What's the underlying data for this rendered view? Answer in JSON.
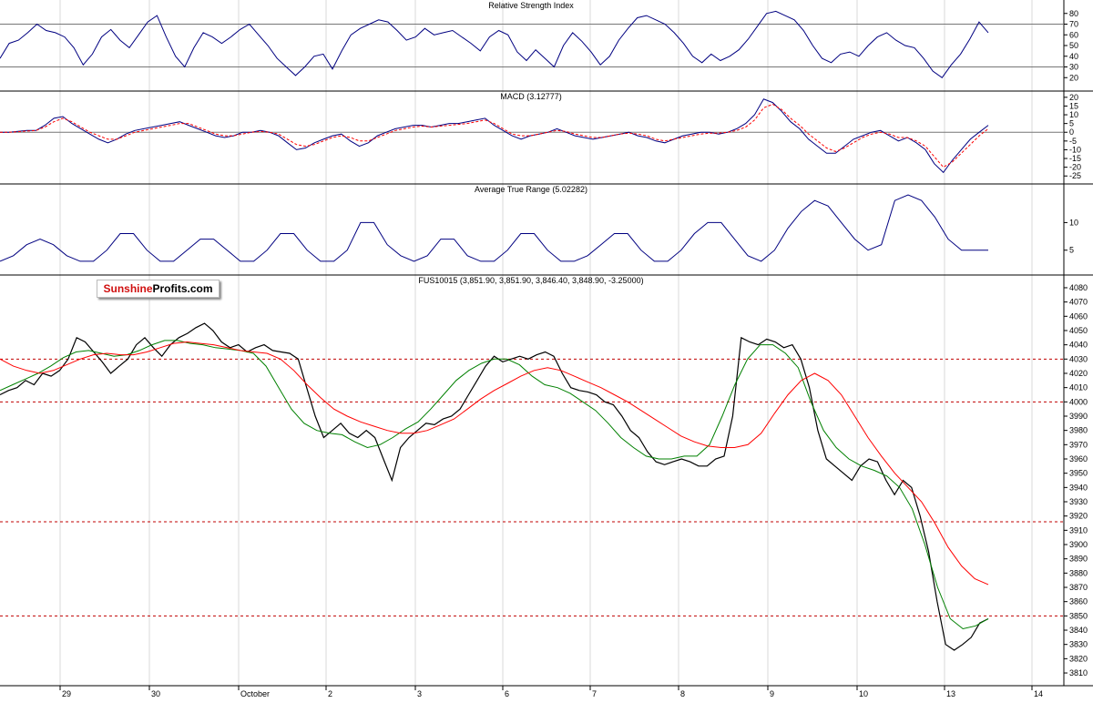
{
  "logo": {
    "part1": "Sunshine",
    "part2": "Profits.com"
  },
  "chart_data": [
    {
      "type": "line",
      "title": "Relative Strength Index",
      "ylim": [
        10,
        90
      ],
      "y_ticks": [
        "80",
        "70",
        "60",
        "50",
        "40",
        "30",
        "20"
      ],
      "reference_lines": [
        70,
        30
      ],
      "series": [
        {
          "color": "#000080",
          "values": [
            38,
            52,
            55,
            62,
            70,
            64,
            62,
            58,
            48,
            32,
            42,
            58,
            65,
            55,
            48,
            60,
            72,
            78,
            58,
            40,
            30,
            48,
            62,
            58,
            52,
            58,
            65,
            70,
            60,
            50,
            38,
            30,
            22,
            30,
            40,
            42,
            28,
            45,
            60,
            66,
            70,
            74,
            72,
            64,
            55,
            58,
            66,
            60,
            62,
            64,
            58,
            52,
            45,
            58,
            64,
            60,
            44,
            36,
            46,
            38,
            30,
            50,
            62,
            54,
            44,
            32,
            40,
            55,
            66,
            76,
            78,
            74,
            70,
            62,
            52,
            40,
            34,
            42,
            36,
            40,
            46,
            56,
            68,
            80,
            82,
            78,
            74,
            64,
            50,
            38,
            34,
            42,
            44,
            40,
            50,
            58,
            62,
            55,
            50,
            48,
            38,
            26,
            20,
            32,
            42,
            56,
            72,
            62
          ]
        }
      ]
    },
    {
      "type": "line",
      "title": "MACD (3.12777)",
      "ylim": [
        -28,
        22
      ],
      "y_ticks": [
        "20",
        "15",
        "10",
        "5",
        "0",
        "-5",
        "-10",
        "-15",
        "-20",
        "-25"
      ],
      "reference_lines": [
        0
      ],
      "series": [
        {
          "color": "#000080",
          "values": [
            0,
            0,
            0.5,
            1,
            1,
            4,
            8,
            9,
            5,
            2,
            -1,
            -4,
            -6,
            -4,
            -1,
            1,
            2,
            3,
            4,
            5,
            6,
            4,
            2,
            0,
            -2,
            -3,
            -2,
            0,
            0,
            1,
            0,
            -2,
            -6,
            -10,
            -9,
            -6,
            -4,
            -2,
            -1,
            -5,
            -8,
            -6,
            -2,
            0,
            2,
            3,
            4,
            4,
            3,
            4,
            5,
            5,
            6,
            7,
            8,
            4,
            1,
            -2,
            -4,
            -2,
            -1,
            0,
            2,
            0,
            -2,
            -3,
            -4,
            -3,
            -2,
            -1,
            0,
            -2,
            -3,
            -5,
            -6,
            -4,
            -2,
            -1,
            0,
            0,
            -1,
            0,
            2,
            5,
            10,
            19,
            17,
            12,
            6,
            2,
            -4,
            -8,
            -12,
            -12,
            -8,
            -4,
            -2,
            0,
            1,
            -2,
            -5,
            -3,
            -6,
            -10,
            -18,
            -23,
            -16,
            -10,
            -4,
            0,
            4
          ]
        },
        {
          "color": "#ff0000",
          "values": [
            0,
            0,
            0.3,
            0.7,
            1,
            3,
            6,
            8,
            6,
            3,
            0,
            -2,
            -4,
            -4,
            -2,
            0,
            1,
            2,
            3,
            4,
            5,
            5,
            3,
            1,
            -1,
            -2,
            -2,
            -1,
            0,
            0.5,
            0,
            -1,
            -4,
            -7,
            -8,
            -7,
            -5,
            -3,
            -2,
            -3,
            -5,
            -5,
            -3,
            -1,
            1,
            2,
            3,
            3.5,
            3,
            3.5,
            4,
            4.5,
            5,
            6,
            7,
            5,
            2,
            -1,
            -2,
            -2,
            -1,
            0,
            1,
            0.5,
            -1,
            -2,
            -3,
            -3,
            -2,
            -1,
            -0.5,
            -1,
            -2,
            -4,
            -5,
            -4,
            -3,
            -2,
            -1,
            -0.5,
            -0.5,
            0,
            1,
            3,
            7,
            14,
            16,
            13,
            8,
            4,
            -1,
            -5,
            -9,
            -11,
            -9,
            -6,
            -3,
            -1,
            0,
            -1,
            -3,
            -3,
            -5,
            -8,
            -14,
            -20,
            -17,
            -12,
            -7,
            -2,
            2
          ]
        }
      ]
    },
    {
      "type": "line",
      "title": "Average True Range (5.02282)",
      "ylim": [
        1,
        16.5
      ],
      "y_ticks": [
        "10",
        "5"
      ],
      "series": [
        {
          "color": "#000080",
          "values": [
            3,
            4,
            6,
            7,
            6,
            4,
            3,
            3,
            5,
            8,
            8,
            5,
            3,
            3,
            5,
            7,
            7,
            5,
            3,
            3,
            5,
            8,
            8,
            5,
            3,
            3,
            5,
            10,
            10,
            6,
            4,
            3,
            4,
            7,
            7,
            4,
            3,
            3,
            5,
            8,
            8,
            5,
            3,
            3,
            4,
            6,
            8,
            8,
            5,
            3,
            3,
            5,
            8,
            10,
            10,
            7,
            4,
            3,
            5,
            9,
            12,
            14,
            13,
            10,
            7,
            5,
            6,
            14,
            15,
            14,
            11,
            7,
            5,
            5,
            5
          ]
        }
      ]
    },
    {
      "type": "line",
      "title": "FUS10015 (3,851.90, 3,851.90, 3,846.40, 3,848.90, -3.25000)",
      "ylim": [
        3803,
        4087
      ],
      "y_ticks": [
        "4080",
        "4070",
        "4060",
        "4050",
        "4040",
        "4030",
        "4020",
        "4010",
        "4000",
        "3990",
        "3980",
        "3970",
        "3960",
        "3950",
        "3940",
        "3930",
        "3920",
        "3910",
        "3900",
        "3890",
        "3880",
        "3870",
        "3860",
        "3850",
        "3840",
        "3830",
        "3820",
        "3810"
      ],
      "x_ticks": [
        "29",
        "30",
        "October",
        "2",
        "3",
        "6",
        "7",
        "8",
        "9",
        "10",
        "13",
        "14"
      ],
      "reference_lines": [
        4030,
        4000,
        3916,
        3850
      ],
      "series": [
        {
          "name": "Price",
          "color": "#000000",
          "values": [
            4005,
            4008,
            4010,
            4015,
            4012,
            4020,
            4018,
            4022,
            4030,
            4045,
            4042,
            4035,
            4028,
            4020,
            4025,
            4030,
            4040,
            4045,
            4038,
            4032,
            4040,
            4045,
            4048,
            4052,
            4055,
            4050,
            4042,
            4038,
            4040,
            4035,
            4038,
            4040,
            4036,
            4035,
            4034,
            4030,
            4010,
            3990,
            3975,
            3980,
            3985,
            3978,
            3975,
            3980,
            3975,
            3960,
            3945,
            3968,
            3975,
            3980,
            3985,
            3984,
            3988,
            3990,
            3995,
            4005,
            4015,
            4025,
            4032,
            4028,
            4030,
            4032,
            4030,
            4033,
            4035,
            4032,
            4020,
            4010,
            4008,
            4007,
            4005,
            4000,
            3998,
            3990,
            3980,
            3975,
            3965,
            3958,
            3956,
            3958,
            3960,
            3958,
            3955,
            3955,
            3960,
            3962,
            3990,
            4045,
            4042,
            4040,
            4044,
            4042,
            4038,
            4040,
            4030,
            4010,
            3980,
            3960,
            3955,
            3950,
            3945,
            3955,
            3960,
            3958,
            3945,
            3935,
            3945,
            3940,
            3920,
            3895,
            3860,
            3830,
            3826,
            3830,
            3835,
            3845,
            3848
          ]
        },
        {
          "name": "EMA-short",
          "color": "#008000",
          "values": [
            4008,
            4012,
            4016,
            4020,
            4025,
            4031,
            4035,
            4036,
            4034,
            4032,
            4033,
            4036,
            4040,
            4043,
            4043,
            4041,
            4040,
            4038,
            4037,
            4036,
            4034,
            4025,
            4010,
            3995,
            3985,
            3980,
            3978,
            3977,
            3972,
            3968,
            3970,
            3975,
            3981,
            3986,
            3995,
            4005,
            4015,
            4022,
            4027,
            4030,
            4030,
            4026,
            4018,
            4012,
            4010,
            4006,
            4000,
            3994,
            3985,
            3975,
            3968,
            3962,
            3960,
            3960,
            3962,
            3962,
            3970,
            3990,
            4012,
            4030,
            4040,
            4040,
            4034,
            4024,
            4000,
            3980,
            3968,
            3960,
            3955,
            3952,
            3948,
            3940,
            3925,
            3900,
            3870,
            3848,
            3841,
            3843,
            3848
          ]
        },
        {
          "name": "EMA-long",
          "color": "#ff0000",
          "values": [
            4030,
            4025,
            4022,
            4020,
            4022,
            4026,
            4030,
            4033,
            4034,
            4033,
            4033,
            4035,
            4038,
            4041,
            4042,
            4041,
            4040,
            4038,
            4036,
            4035,
            4034,
            4030,
            4022,
            4012,
            4003,
            3995,
            3990,
            3986,
            3983,
            3980,
            3978,
            3978,
            3980,
            3984,
            3988,
            3995,
            4002,
            4008,
            4013,
            4018,
            4022,
            4024,
            4022,
            4018,
            4014,
            4010,
            4005,
            4000,
            3994,
            3988,
            3982,
            3976,
            3972,
            3969,
            3968,
            3968,
            3970,
            3978,
            3992,
            4005,
            4015,
            4020,
            4015,
            4005,
            3990,
            3975,
            3962,
            3950,
            3940,
            3930,
            3915,
            3898,
            3885,
            3876,
            3872
          ]
        }
      ]
    }
  ]
}
